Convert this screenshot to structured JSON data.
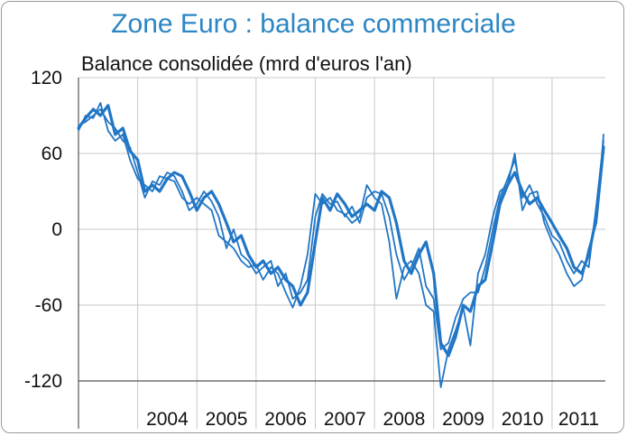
{
  "chart_data": {
    "type": "line",
    "title": "Zone Euro : balance commerciale",
    "subtitle": "Balance consolidée (mrd d'euros l'an)",
    "ylim": [
      -120,
      120
    ],
    "yticks": [
      "120",
      "60",
      "0",
      "-60",
      "-120"
    ],
    "ytick_values": [
      120,
      60,
      0,
      -60,
      -120
    ],
    "categories": [
      "2004",
      "2005",
      "2006",
      "2007",
      "2008",
      "2009",
      "2010",
      "2011"
    ],
    "x_start": 2003.0,
    "x_end": 2011.9,
    "grid": true,
    "line_color": "#2176c5",
    "series": [
      {
        "values": [
          [
            2003.0,
            80
          ],
          [
            2003.12,
            88
          ],
          [
            2003.25,
            95
          ],
          [
            2003.37,
            90
          ],
          [
            2003.5,
            98
          ],
          [
            2003.62,
            75
          ],
          [
            2003.75,
            80
          ],
          [
            2003.87,
            62
          ],
          [
            2004.0,
            55
          ],
          [
            2004.12,
            30
          ],
          [
            2004.25,
            35
          ],
          [
            2004.37,
            30
          ],
          [
            2004.5,
            40
          ],
          [
            2004.62,
            45
          ],
          [
            2004.75,
            42
          ],
          [
            2004.87,
            30
          ],
          [
            2005.0,
            15
          ],
          [
            2005.12,
            25
          ],
          [
            2005.25,
            30
          ],
          [
            2005.37,
            20
          ],
          [
            2005.5,
            5
          ],
          [
            2005.62,
            -10
          ],
          [
            2005.75,
            -5
          ],
          [
            2005.87,
            -20
          ],
          [
            2006.0,
            -30
          ],
          [
            2006.12,
            -25
          ],
          [
            2006.25,
            -35
          ],
          [
            2006.37,
            -30
          ],
          [
            2006.5,
            -40
          ],
          [
            2006.62,
            -45
          ],
          [
            2006.75,
            -60
          ],
          [
            2006.87,
            -50
          ],
          [
            2007.0,
            -10
          ],
          [
            2007.12,
            25
          ],
          [
            2007.25,
            15
          ],
          [
            2007.37,
            28
          ],
          [
            2007.5,
            20
          ],
          [
            2007.62,
            10
          ],
          [
            2007.75,
            15
          ],
          [
            2007.87,
            20
          ],
          [
            2008.0,
            15
          ],
          [
            2008.12,
            30
          ],
          [
            2008.25,
            25
          ],
          [
            2008.37,
            5
          ],
          [
            2008.5,
            -25
          ],
          [
            2008.62,
            -35
          ],
          [
            2008.75,
            -20
          ],
          [
            2008.87,
            -10
          ],
          [
            2009.0,
            -35
          ],
          [
            2009.12,
            -90
          ],
          [
            2009.25,
            -100
          ],
          [
            2009.37,
            -85
          ],
          [
            2009.5,
            -60
          ],
          [
            2009.62,
            -65
          ],
          [
            2009.75,
            -45
          ],
          [
            2009.87,
            -40
          ],
          [
            2010.0,
            -10
          ],
          [
            2010.12,
            20
          ],
          [
            2010.25,
            35
          ],
          [
            2010.37,
            45
          ],
          [
            2010.5,
            30
          ],
          [
            2010.62,
            20
          ],
          [
            2010.75,
            25
          ],
          [
            2010.87,
            15
          ],
          [
            2011.0,
            5
          ],
          [
            2011.12,
            -5
          ],
          [
            2011.25,
            -15
          ],
          [
            2011.37,
            -30
          ],
          [
            2011.5,
            -35
          ],
          [
            2011.62,
            -20
          ],
          [
            2011.75,
            10
          ],
          [
            2011.87,
            65
          ]
        ]
      },
      {
        "values": [
          [
            2003.0,
            82
          ],
          [
            2003.12,
            85
          ],
          [
            2003.25,
            90
          ],
          [
            2003.37,
            95
          ],
          [
            2003.5,
            85
          ],
          [
            2003.62,
            80
          ],
          [
            2003.75,
            70
          ],
          [
            2003.87,
            65
          ],
          [
            2004.0,
            45
          ],
          [
            2004.12,
            25
          ],
          [
            2004.25,
            38
          ],
          [
            2004.37,
            35
          ],
          [
            2004.5,
            45
          ],
          [
            2004.62,
            42
          ],
          [
            2004.75,
            30
          ],
          [
            2004.87,
            15
          ],
          [
            2005.0,
            20
          ],
          [
            2005.12,
            30
          ],
          [
            2005.25,
            22
          ],
          [
            2005.37,
            10
          ],
          [
            2005.5,
            -15
          ],
          [
            2005.62,
            0
          ],
          [
            2005.75,
            -20
          ],
          [
            2005.87,
            -25
          ],
          [
            2006.0,
            -35
          ],
          [
            2006.12,
            -30
          ],
          [
            2006.25,
            -25
          ],
          [
            2006.37,
            -45
          ],
          [
            2006.5,
            -35
          ],
          [
            2006.62,
            -55
          ],
          [
            2006.75,
            -50
          ],
          [
            2006.87,
            -40
          ],
          [
            2007.0,
            10
          ],
          [
            2007.12,
            28
          ],
          [
            2007.25,
            20
          ],
          [
            2007.37,
            22
          ],
          [
            2007.5,
            10
          ],
          [
            2007.62,
            18
          ],
          [
            2007.75,
            5
          ],
          [
            2007.87,
            25
          ],
          [
            2008.0,
            30
          ],
          [
            2008.12,
            28
          ],
          [
            2008.25,
            10
          ],
          [
            2008.37,
            -20
          ],
          [
            2008.5,
            -40
          ],
          [
            2008.62,
            -30
          ],
          [
            2008.75,
            -15
          ],
          [
            2008.87,
            -45
          ],
          [
            2009.0,
            -55
          ],
          [
            2009.12,
            -95
          ],
          [
            2009.25,
            -90
          ],
          [
            2009.37,
            -70
          ],
          [
            2009.5,
            -55
          ],
          [
            2009.62,
            -50
          ],
          [
            2009.75,
            -50
          ],
          [
            2009.87,
            -30
          ],
          [
            2010.0,
            0
          ],
          [
            2010.12,
            25
          ],
          [
            2010.25,
            40
          ],
          [
            2010.37,
            55
          ],
          [
            2010.5,
            25
          ],
          [
            2010.62,
            35
          ],
          [
            2010.75,
            20
          ],
          [
            2010.87,
            10
          ],
          [
            2011.0,
            -5
          ],
          [
            2011.12,
            -10
          ],
          [
            2011.25,
            -25
          ],
          [
            2011.37,
            -35
          ],
          [
            2011.5,
            -25
          ],
          [
            2011.62,
            -30
          ],
          [
            2011.75,
            20
          ],
          [
            2011.87,
            70
          ]
        ]
      },
      {
        "values": [
          [
            2003.0,
            78
          ],
          [
            2003.12,
            90
          ],
          [
            2003.25,
            88
          ],
          [
            2003.37,
            100
          ],
          [
            2003.5,
            78
          ],
          [
            2003.62,
            70
          ],
          [
            2003.75,
            75
          ],
          [
            2003.87,
            55
          ],
          [
            2004.0,
            40
          ],
          [
            2004.12,
            35
          ],
          [
            2004.25,
            30
          ],
          [
            2004.37,
            42
          ],
          [
            2004.5,
            40
          ],
          [
            2004.62,
            38
          ],
          [
            2004.75,
            25
          ],
          [
            2004.87,
            20
          ],
          [
            2005.0,
            25
          ],
          [
            2005.12,
            20
          ],
          [
            2005.25,
            15
          ],
          [
            2005.37,
            -5
          ],
          [
            2005.5,
            -10
          ],
          [
            2005.62,
            -15
          ],
          [
            2005.75,
            -25
          ],
          [
            2005.87,
            -30
          ],
          [
            2006.0,
            -28
          ],
          [
            2006.12,
            -40
          ],
          [
            2006.25,
            -30
          ],
          [
            2006.37,
            -35
          ],
          [
            2006.5,
            -50
          ],
          [
            2006.62,
            -62
          ],
          [
            2006.75,
            -45
          ],
          [
            2006.87,
            -20
          ],
          [
            2007.0,
            28
          ],
          [
            2007.12,
            20
          ],
          [
            2007.25,
            25
          ],
          [
            2007.37,
            15
          ],
          [
            2007.5,
            12
          ],
          [
            2007.62,
            5
          ],
          [
            2007.75,
            10
          ],
          [
            2007.87,
            35
          ],
          [
            2008.0,
            25
          ],
          [
            2008.12,
            20
          ],
          [
            2008.25,
            -10
          ],
          [
            2008.37,
            -55
          ],
          [
            2008.5,
            -30
          ],
          [
            2008.62,
            -25
          ],
          [
            2008.75,
            -35
          ],
          [
            2008.87,
            -60
          ],
          [
            2009.0,
            -65
          ],
          [
            2009.12,
            -125
          ],
          [
            2009.25,
            -95
          ],
          [
            2009.37,
            -80
          ],
          [
            2009.5,
            -62
          ],
          [
            2009.62,
            -92
          ],
          [
            2009.75,
            -35
          ],
          [
            2009.87,
            -20
          ],
          [
            2010.0,
            10
          ],
          [
            2010.12,
            30
          ],
          [
            2010.25,
            35
          ],
          [
            2010.37,
            60
          ],
          [
            2010.5,
            15
          ],
          [
            2010.62,
            28
          ],
          [
            2010.75,
            30
          ],
          [
            2010.87,
            5
          ],
          [
            2011.0,
            -10
          ],
          [
            2011.12,
            -20
          ],
          [
            2011.25,
            -35
          ],
          [
            2011.37,
            -45
          ],
          [
            2011.5,
            -40
          ],
          [
            2011.62,
            -15
          ],
          [
            2011.75,
            5
          ],
          [
            2011.87,
            75
          ]
        ]
      }
    ]
  }
}
